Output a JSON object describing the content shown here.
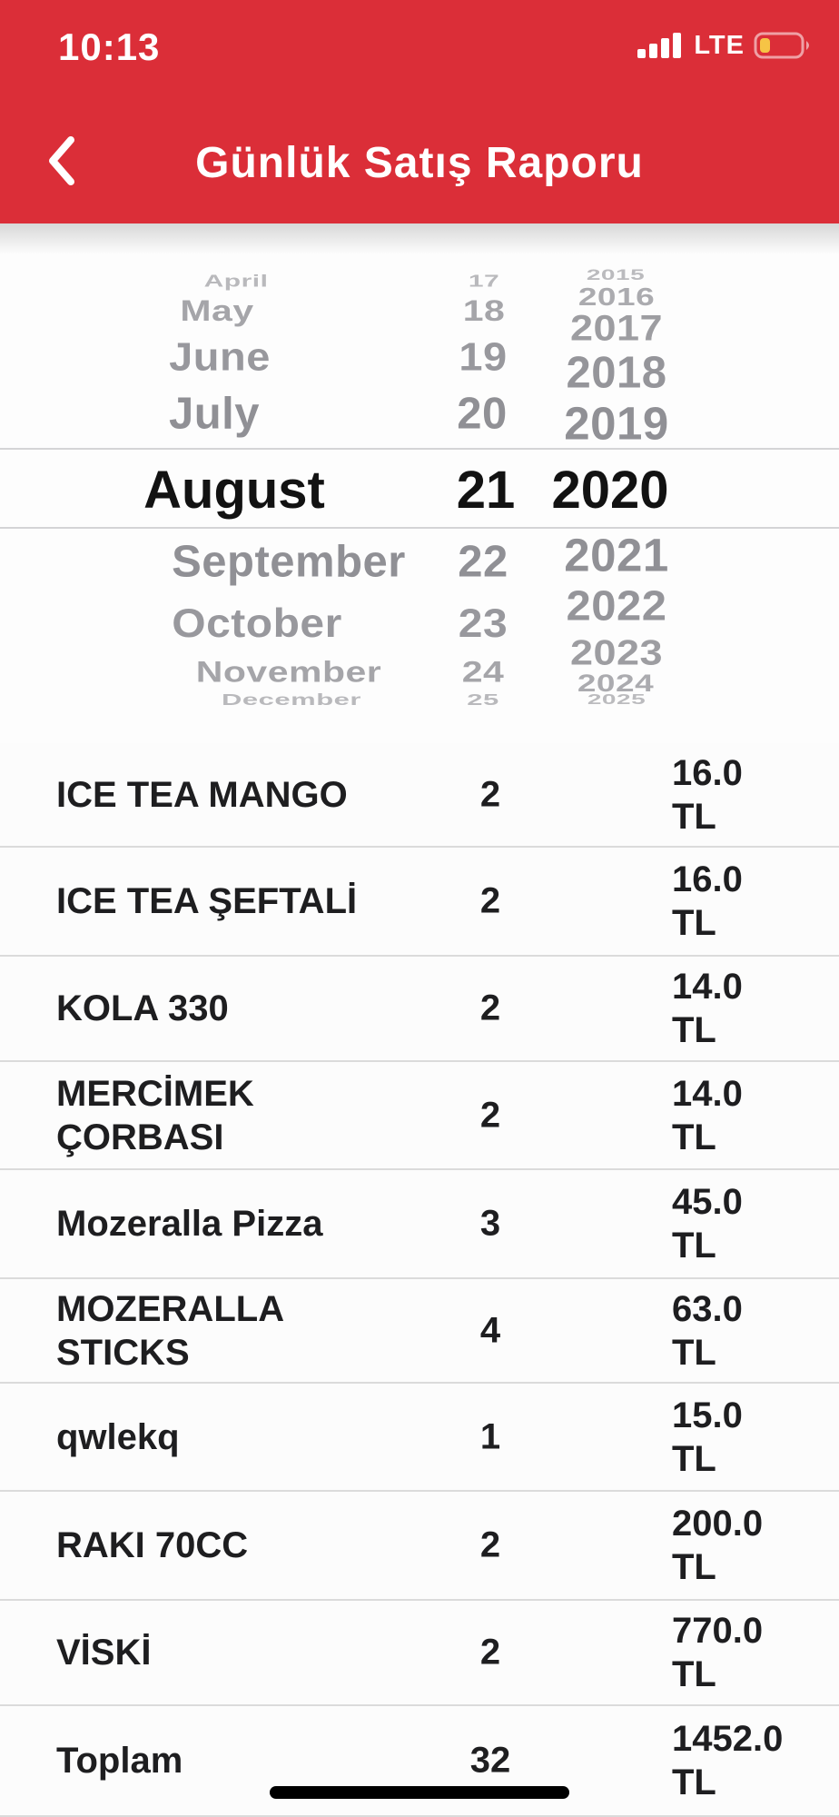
{
  "status_bar": {
    "time": "10:13",
    "network": "LTE",
    "signal_icon": "signal-strength-icon",
    "battery_icon": "battery-low-icon"
  },
  "header": {
    "title": "Günlük Satış Raporu",
    "back_icon": "chevron-left-icon"
  },
  "date_picker": {
    "month": {
      "above": [
        "April",
        "May",
        "June",
        "July"
      ],
      "selected": "August",
      "below": [
        "September",
        "October",
        "November",
        "December"
      ]
    },
    "day": {
      "above": [
        "17",
        "18",
        "19",
        "20"
      ],
      "selected": "21",
      "below": [
        "22",
        "23",
        "24",
        "25"
      ]
    },
    "year": {
      "above": [
        "2015",
        "2016",
        "2017",
        "2018",
        "2019"
      ],
      "selected": "2020",
      "below": [
        "2021",
        "2022",
        "2023",
        "2024",
        "2025"
      ]
    }
  },
  "report": {
    "currency": "TL",
    "rows": [
      {
        "name": "ICE TEA MANGO",
        "qty": "2",
        "amount": "16.0"
      },
      {
        "name": "ICE TEA ŞEFTALİ",
        "qty": "2",
        "amount": "16.0"
      },
      {
        "name": "KOLA 330",
        "qty": "2",
        "amount": "14.0"
      },
      {
        "name": "MERCİMEK ÇORBASI",
        "qty": "2",
        "amount": "14.0"
      },
      {
        "name": "Mozeralla Pizza",
        "qty": "3",
        "amount": "45.0"
      },
      {
        "name": "MOZERALLA STICKS",
        "qty": "4",
        "amount": "63.0"
      },
      {
        "name": "qwlekq",
        "qty": "1",
        "amount": "15.0"
      },
      {
        "name": "RAKI 70CC",
        "qty": "2",
        "amount": "200.0"
      },
      {
        "name": "VİSKİ",
        "qty": "2",
        "amount": "770.0"
      },
      {
        "name": "Toplam",
        "qty": "32",
        "amount": "1452.0"
      }
    ]
  },
  "colors": {
    "header_red": "#DB2E38",
    "battery_yellow": "#F6C445",
    "picker_gray": "#909095",
    "selected_text": "#121212",
    "row_text": "#1E1E20"
  }
}
